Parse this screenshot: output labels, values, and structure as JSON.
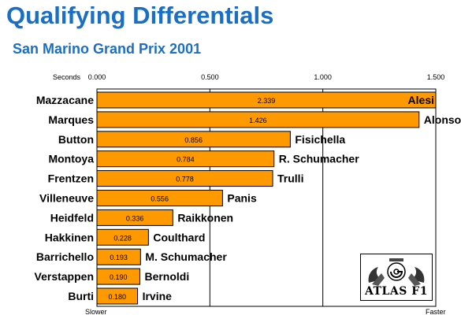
{
  "title": "Qualifying Differentials",
  "subtitle": "San Marino Grand Prix 2001",
  "logo": {
    "text": "ATLAS F1"
  },
  "colors": {
    "title": "#1a6fc4",
    "bar": "#ff9900",
    "bar_stroke": "#000000"
  },
  "chart_data": {
    "type": "bar",
    "orientation": "horizontal",
    "axis_unit_label": "Seconds",
    "xlim": [
      0,
      1.5
    ],
    "x_ticks": [
      "0.000",
      "0.500",
      "1.000",
      "1.500"
    ],
    "min_label": "Slower",
    "max_label": "Faster",
    "grid": true,
    "rows": [
      {
        "left": "Mazzacane",
        "right": "Alesi",
        "value": 2.339,
        "label": "2.339"
      },
      {
        "left": "Marques",
        "right": "Alonso",
        "value": 1.426,
        "label": "1.426"
      },
      {
        "left": "Button",
        "right": "Fisichella",
        "value": 0.856,
        "label": "0.856"
      },
      {
        "left": "Montoya",
        "right": "R. Schumacher",
        "value": 0.784,
        "label": "0.784"
      },
      {
        "left": "Frentzen",
        "right": "Trulli",
        "value": 0.778,
        "label": "0.778"
      },
      {
        "left": "Villeneuve",
        "right": "Panis",
        "value": 0.556,
        "label": "0.556"
      },
      {
        "left": "Heidfeld",
        "right": "Raikkonen",
        "value": 0.336,
        "label": "0.336"
      },
      {
        "left": "Hakkinen",
        "right": "Coulthard",
        "value": 0.228,
        "label": "0.228"
      },
      {
        "left": "Barrichello",
        "right": "M. Schumacher",
        "value": 0.193,
        "label": "0.193"
      },
      {
        "left": "Verstappen",
        "right": "Bernoldi",
        "value": 0.19,
        "label": "0.190"
      },
      {
        "left": "Burti",
        "right": "Irvine",
        "value": 0.18,
        "label": "0.180"
      }
    ]
  }
}
